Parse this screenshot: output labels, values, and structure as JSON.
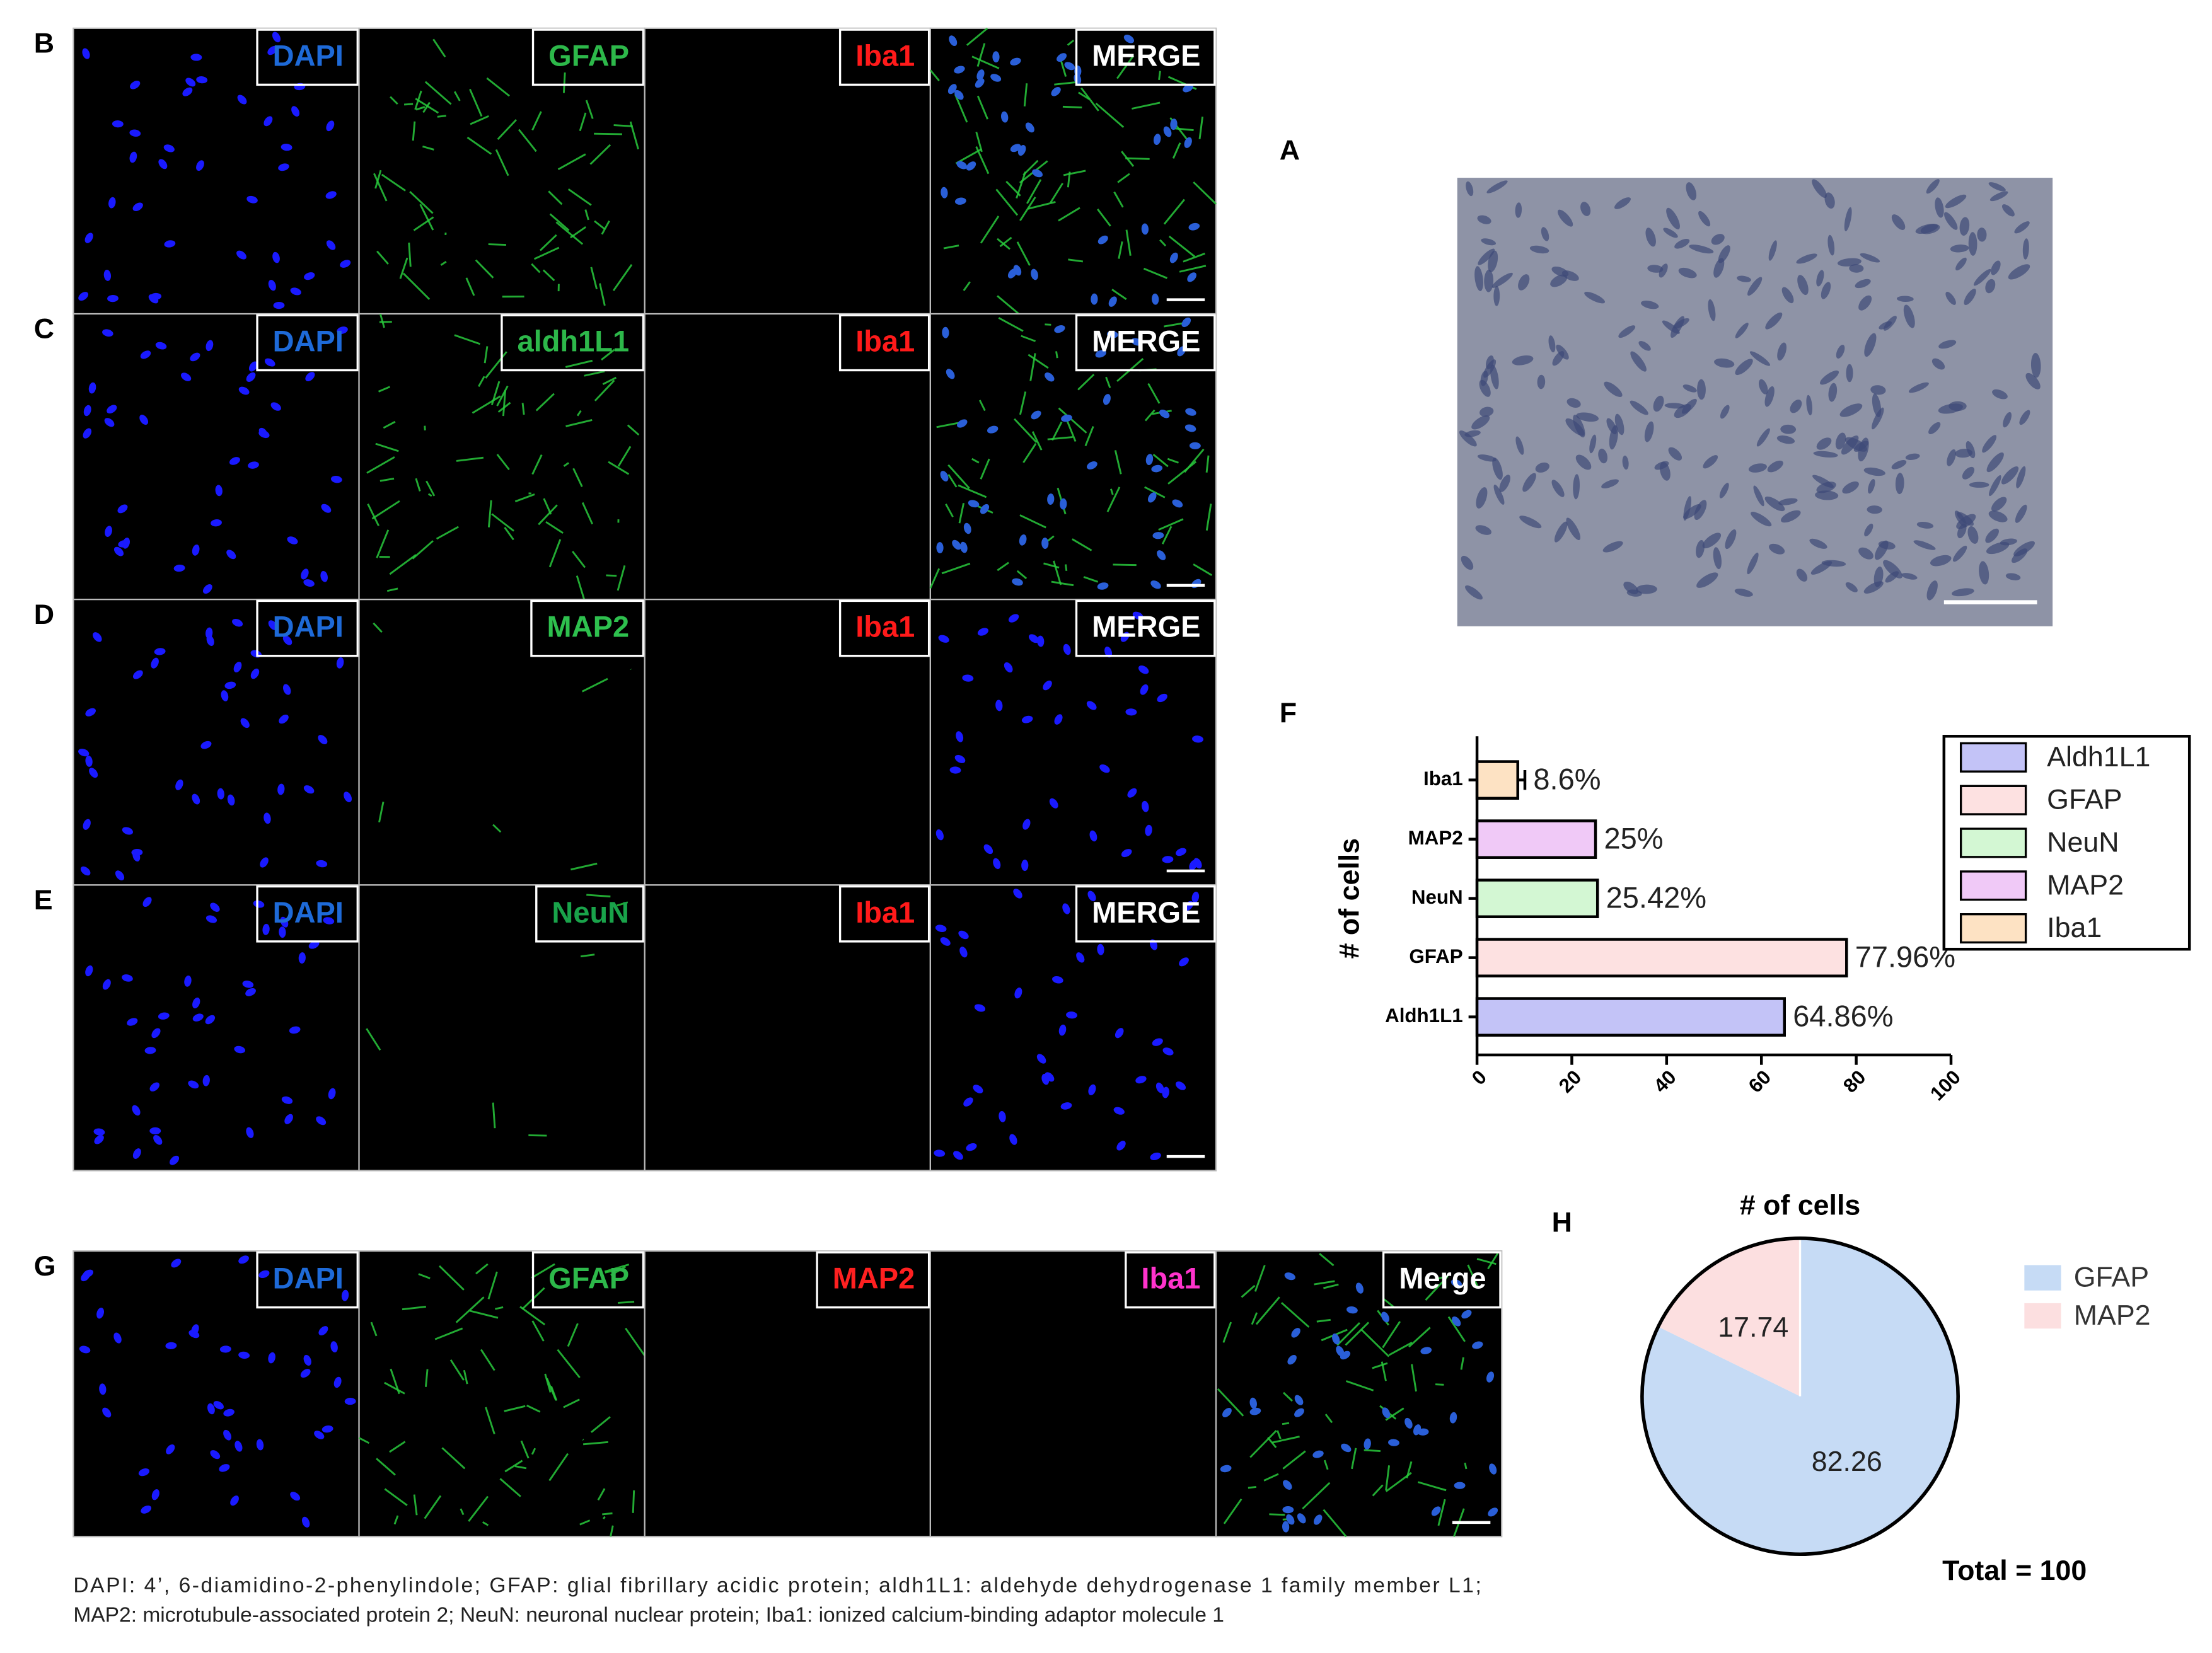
{
  "microscopy": {
    "rows": [
      {
        "label": "B",
        "channels": [
          {
            "text": "DAPI",
            "color": "#1e6ad8"
          },
          {
            "text": "GFAP",
            "color": "#2db84a"
          },
          {
            "text": "Iba1",
            "color": "#ff1a1a"
          },
          {
            "text": "MERGE",
            "color": "#ffffff"
          }
        ]
      },
      {
        "label": "C",
        "channels": [
          {
            "text": "DAPI",
            "color": "#1e6ad8"
          },
          {
            "text": "aldh1L1",
            "color": "#2db84a"
          },
          {
            "text": "Iba1",
            "color": "#ff1a1a"
          },
          {
            "text": "MERGE",
            "color": "#ffffff"
          }
        ]
      },
      {
        "label": "D",
        "channels": [
          {
            "text": "DAPI",
            "color": "#1e6ad8"
          },
          {
            "text": "MAP2",
            "color": "#2ec04e"
          },
          {
            "text": "Iba1",
            "color": "#ff1a1a"
          },
          {
            "text": "MERGE",
            "color": "#ffffff"
          }
        ]
      },
      {
        "label": "E",
        "channels": [
          {
            "text": "DAPI",
            "color": "#1e6ad8"
          },
          {
            "text": "NeuN",
            "color": "#19a34a"
          },
          {
            "text": "Iba1",
            "color": "#ff1a1a"
          },
          {
            "text": "MERGE",
            "color": "#ffffff"
          }
        ]
      },
      {
        "label": "G",
        "channels": [
          {
            "text": "DAPI",
            "color": "#1e6ad8"
          },
          {
            "text": "GFAP",
            "color": "#2db84a"
          },
          {
            "text": "MAP2",
            "color": "#ff2020"
          },
          {
            "text": "Iba1",
            "color": "#ff33cc"
          },
          {
            "text": "Merge",
            "color": "#ffffff"
          }
        ]
      }
    ]
  },
  "phase_contrast": {
    "label": "A"
  },
  "chart_data": [
    {
      "type": "bar",
      "orientation": "horizontal",
      "panel_label": "F",
      "y_label": "# of cells",
      "categories": [
        "Aldh1L1",
        "GFAP",
        "NeuN",
        "MAP2",
        "Iba1"
      ],
      "values": [
        64.86,
        77.96,
        25.42,
        25,
        8.6
      ],
      "value_labels": [
        "64.86%",
        "77.96%",
        "25.42%",
        "25%",
        "8.6%"
      ],
      "errors": [
        null,
        null,
        null,
        null,
        1.5
      ],
      "colors": [
        "#c3c3f7",
        "#fde1e1",
        "#d3f7d3",
        "#f0c9f7",
        "#fde2c3"
      ],
      "xlim": [
        0,
        100
      ],
      "xticks": [
        0,
        20,
        40,
        60,
        80,
        100
      ],
      "legend": "right"
    },
    {
      "type": "pie",
      "panel_label": "H",
      "title": "# of cells",
      "categories": [
        "GFAP",
        "MAP2"
      ],
      "values": [
        82.26,
        17.74
      ],
      "colors": [
        "#c6dbf5",
        "#fcdfe0"
      ],
      "annotation": "Total = 100",
      "legend": "right"
    }
  ],
  "caption": [
    "DAPI: 4’, 6-diamidino-2-phenylindole; GFAP: glial fibrillary acidic protein; aldh1L1: aldehyde dehydrogenase 1 family member L1;",
    "MAP2: microtubule-associated protein 2; NeuN: neuronal nuclear protein; Iba1: ionized calcium-binding adaptor molecule 1"
  ]
}
